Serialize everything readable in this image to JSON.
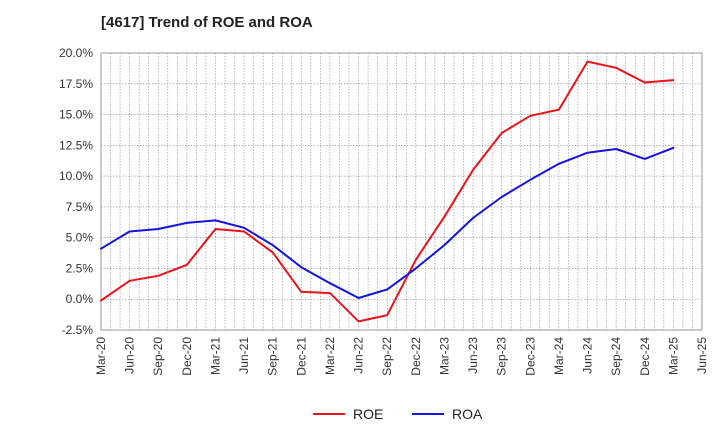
{
  "chart_data": {
    "type": "line",
    "title": "[4617]  Trend of ROE and ROA",
    "xlabel": "",
    "ylabel": "",
    "x": [
      "Mar-20",
      "Jun-20",
      "Sep-20",
      "Dec-20",
      "Mar-21",
      "Jun-21",
      "Sep-21",
      "Dec-21",
      "Mar-22",
      "Jun-22",
      "Sep-22",
      "Dec-22",
      "Mar-23",
      "Jun-23",
      "Sep-23",
      "Dec-23",
      "Mar-24",
      "Jun-24",
      "Sep-24",
      "Dec-24",
      "Mar-25",
      "Jun-25"
    ],
    "ylim": [
      -2.5,
      20.0
    ],
    "yticks": [
      -2.5,
      0.0,
      2.5,
      5.0,
      7.5,
      10.0,
      12.5,
      15.0,
      17.5,
      20.0
    ],
    "ytick_labels": [
      "-2.5%",
      "0.0%",
      "2.5%",
      "5.0%",
      "7.5%",
      "10.0%",
      "12.5%",
      "15.0%",
      "17.5%",
      "20.0%"
    ],
    "grid": true,
    "legend_position": "bottom-center",
    "series": [
      {
        "name": "ROE",
        "color": "#e8141c",
        "values": [
          -0.1,
          1.5,
          1.9,
          2.8,
          5.7,
          5.5,
          3.8,
          0.6,
          0.5,
          -1.8,
          -1.3,
          3.2,
          6.7,
          10.5,
          13.5,
          14.9,
          15.4,
          19.3,
          18.8,
          17.6,
          17.8,
          null
        ]
      },
      {
        "name": "ROA",
        "color": "#1414e0",
        "values": [
          4.1,
          5.5,
          5.7,
          6.2,
          6.4,
          5.8,
          4.4,
          2.6,
          1.3,
          0.1,
          0.8,
          2.5,
          4.4,
          6.6,
          8.3,
          9.7,
          11.0,
          11.9,
          12.2,
          11.4,
          12.3,
          null
        ]
      }
    ]
  }
}
